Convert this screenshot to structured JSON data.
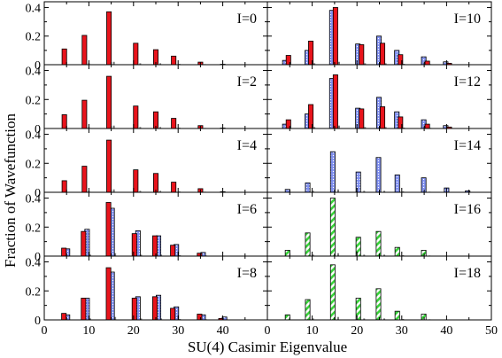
{
  "chart_data": {
    "type": "bar",
    "xlabel": "SU(4) Casimir Eigenvalue",
    "ylabel": "Fraction of Wavefunction",
    "xlim": [
      0,
      50
    ],
    "x_ticks": [
      "0",
      "10",
      "20",
      "30",
      "40",
      "50"
    ],
    "colors": {
      "red": "#e8141c",
      "blue": "#7f8ff0",
      "green": "#39d43a",
      "small_bar": "#777777"
    },
    "panels": [
      {
        "label": "I=0",
        "ylim": [
          0,
          0.44
        ],
        "y_ticks": [
          "0",
          "0.2",
          "0.4"
        ],
        "red_x": [
          4.5,
          9,
          14.5,
          20.5,
          25,
          29,
          35,
          40
        ],
        "red": [
          0.11,
          0.205,
          0.37,
          0.15,
          0.105,
          0.06,
          0.018,
          0.003
        ],
        "blue_x": [],
        "blue": [],
        "green_x": [],
        "green": [],
        "small_x": [
          10,
          15.6,
          21.5,
          26,
          30.3,
          36
        ],
        "small": [
          0.01,
          0.02,
          0.01,
          0.01,
          0.006,
          0.004
        ]
      },
      {
        "label": "I=2",
        "ylim": [
          0,
          0.44
        ],
        "y_ticks": [
          "0",
          "0.2",
          "0.4"
        ],
        "red_x": [
          4.5,
          9,
          14.5,
          20.5,
          25,
          29,
          35,
          40
        ],
        "red": [
          0.095,
          0.195,
          0.36,
          0.155,
          0.115,
          0.07,
          0.02,
          0.003
        ],
        "blue_x": [],
        "blue": [],
        "green_x": [],
        "green": [],
        "small_x": [
          10,
          15.6,
          21.5,
          26,
          30.3,
          36
        ],
        "small": [
          0.01,
          0.02,
          0.01,
          0.01,
          0.006,
          0.004
        ]
      },
      {
        "label": "I=4",
        "ylim": [
          0,
          0.44
        ],
        "y_ticks": [
          "0",
          "0.2",
          "0.4"
        ],
        "red_x": [
          4.5,
          9,
          14.5,
          20.5,
          25,
          29,
          35,
          40
        ],
        "red": [
          0.08,
          0.18,
          0.36,
          0.155,
          0.13,
          0.07,
          0.025,
          0.004
        ],
        "blue_x": [],
        "blue": [],
        "green_x": [],
        "green": [],
        "small_x": [
          10,
          15.6,
          21.5,
          26,
          30.3,
          36
        ],
        "small": [
          0.01,
          0.02,
          0.01,
          0.01,
          0.006,
          0.004
        ]
      },
      {
        "label": "I=6",
        "ylim": [
          0,
          0.44
        ],
        "y_ticks": [
          "0",
          "0.2",
          "0.4"
        ],
        "red_x": [
          4.4,
          8.8,
          14.4,
          20.2,
          24.8,
          28.8,
          34.8
        ],
        "red": [
          0.055,
          0.17,
          0.37,
          0.155,
          0.14,
          0.075,
          0.02
        ],
        "blue_x": [
          5.2,
          9.6,
          15.2,
          21.0,
          25.6,
          29.6,
          35.6
        ],
        "blue": [
          0.05,
          0.185,
          0.33,
          0.175,
          0.14,
          0.08,
          0.025
        ],
        "green_x": [],
        "green": [],
        "small_x": [
          10.3,
          15.9,
          21.7,
          26.2,
          30.4,
          36.3
        ],
        "small": [
          0.01,
          0.02,
          0.01,
          0.01,
          0.006,
          0.004
        ]
      },
      {
        "label": "I=8",
        "ylim": [
          0,
          0.44
        ],
        "y_ticks": [
          "0",
          "0.2",
          "0.4"
        ],
        "red_x": [
          4.4,
          8.8,
          14.4,
          20.2,
          24.8,
          28.8,
          34.8,
          39.6
        ],
        "red": [
          0.045,
          0.15,
          0.36,
          0.15,
          0.16,
          0.08,
          0.04,
          0.01
        ],
        "blue_x": [
          5.2,
          9.6,
          15.2,
          21.0,
          25.6,
          29.6,
          35.6,
          40.4
        ],
        "blue": [
          0.035,
          0.15,
          0.33,
          0.16,
          0.17,
          0.09,
          0.035,
          0.02
        ],
        "green_x": [],
        "green": [],
        "small_x": [
          10.3,
          15.9,
          21.7,
          26.2,
          30.4,
          36.3
        ],
        "small": [
          0.01,
          0.02,
          0.01,
          0.01,
          0.006,
          0.004
        ]
      },
      {
        "label": "I=10",
        "ylim": [
          0,
          0.44
        ],
        "y_ticks": [],
        "red_x": [
          4.7,
          9.7,
          15.2,
          21.0,
          25.7,
          29.7,
          35.7,
          40.6
        ],
        "red": [
          0.065,
          0.165,
          0.4,
          0.14,
          0.15,
          0.07,
          0.025,
          0.01
        ],
        "blue_x": [
          3.9,
          8.9,
          14.4,
          20.2,
          24.9,
          28.9,
          34.9,
          39.8
        ],
        "blue": [
          0.03,
          0.1,
          0.38,
          0.145,
          0.2,
          0.1,
          0.055,
          0.02
        ],
        "green_x": [],
        "green": [],
        "small_x": [
          10.5,
          16.0,
          21.8,
          26.4,
          30.5,
          36.4
        ],
        "small": [
          0.01,
          0.02,
          0.01,
          0.01,
          0.006,
          0.004
        ]
      },
      {
        "label": "I=12",
        "ylim": [
          0,
          0.44
        ],
        "y_ticks": [],
        "red_x": [
          4.7,
          9.7,
          15.2,
          21.0,
          25.7,
          29.7,
          35.7,
          40.6
        ],
        "red": [
          0.06,
          0.165,
          0.37,
          0.135,
          0.15,
          0.08,
          0.03,
          0.01
        ],
        "blue_x": [
          3.9,
          8.9,
          14.4,
          20.2,
          24.9,
          28.9,
          34.9,
          39.8
        ],
        "blue": [
          0.03,
          0.1,
          0.345,
          0.14,
          0.215,
          0.115,
          0.06,
          0.02
        ],
        "green_x": [],
        "green": [],
        "small_x": [
          10.5,
          16.0,
          21.8,
          26.4,
          30.5,
          36.4
        ],
        "small": [
          0.01,
          0.02,
          0.01,
          0.01,
          0.006,
          0.004
        ]
      },
      {
        "label": "I=14",
        "ylim": [
          0,
          0.44
        ],
        "y_ticks": [],
        "red_x": [],
        "red": [],
        "blue_x": [
          4.5,
          9.0,
          14.6,
          20.3,
          24.8,
          29.0,
          34.9,
          40.0,
          44.7
        ],
        "blue": [
          0.02,
          0.065,
          0.28,
          0.14,
          0.24,
          0.12,
          0.1,
          0.03,
          0.01
        ],
        "green_x": [],
        "green": [],
        "small_x": [
          10.2,
          15.8,
          21.6,
          26.1,
          30.3,
          36.2
        ],
        "small": [
          0.01,
          0.02,
          0.01,
          0.01,
          0.006,
          0.004
        ]
      },
      {
        "label": "I=16",
        "ylim": [
          0,
          0.44
        ],
        "y_ticks": [],
        "red_x": [],
        "red": [],
        "blue_x": [],
        "blue": [],
        "green_x": [
          4.5,
          9.0,
          14.6,
          20.3,
          24.8,
          29.0,
          34.9
        ],
        "green": [
          0.04,
          0.16,
          0.4,
          0.13,
          0.17,
          0.06,
          0.04
        ],
        "small_x": [
          10.2,
          15.8,
          21.6,
          26.1,
          30.3,
          36.2
        ],
        "small": [
          0.01,
          0.02,
          0.01,
          0.01,
          0.006,
          0.004
        ]
      },
      {
        "label": "I=18",
        "ylim": [
          0,
          0.44
        ],
        "y_ticks": [],
        "red_x": [],
        "red": [],
        "blue_x": [],
        "blue": [],
        "green_x": [
          4.5,
          9.0,
          14.6,
          20.3,
          24.8,
          29.0,
          34.9
        ],
        "green": [
          0.035,
          0.14,
          0.38,
          0.15,
          0.215,
          0.06,
          0.04
        ],
        "small_x": [
          10.2,
          15.8,
          21.6,
          26.1,
          30.3,
          36.2
        ],
        "small": [
          0.01,
          0.02,
          0.01,
          0.01,
          0.006,
          0.004
        ]
      }
    ]
  }
}
